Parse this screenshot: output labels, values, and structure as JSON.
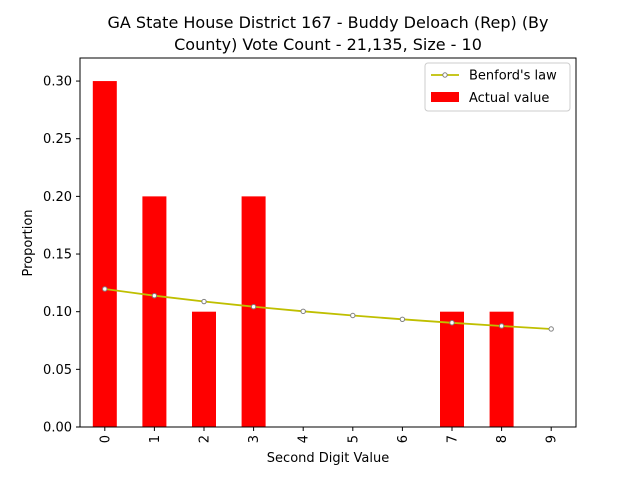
{
  "chart_data": {
    "type": "bar",
    "title_lines": [
      "GA State House District 167 - Buddy Deloach (Rep) (By",
      "County) Vote Count - 21,135, Size - 10"
    ],
    "xlabel": "Second Digit Value",
    "ylabel": "Proportion",
    "categories": [
      "0",
      "1",
      "2",
      "3",
      "4",
      "5",
      "6",
      "7",
      "8",
      "9"
    ],
    "ylim": [
      0,
      0.32
    ],
    "yticks": [
      "0.00",
      "0.05",
      "0.10",
      "0.15",
      "0.20",
      "0.25",
      "0.30"
    ],
    "legend_position": "top-right",
    "series": [
      {
        "name": "Benford's law",
        "type": "line",
        "color": "#bfbf00",
        "marker": "circle",
        "values": [
          0.1197,
          0.1139,
          0.1088,
          0.1043,
          0.1003,
          0.0967,
          0.0934,
          0.0904,
          0.0876,
          0.085
        ]
      },
      {
        "name": "Actual value",
        "type": "bar",
        "color": "#ff0000",
        "values": [
          0.3,
          0.2,
          0.1,
          0.2,
          0.0,
          0.0,
          0.0,
          0.1,
          0.1,
          0.0
        ]
      }
    ]
  }
}
